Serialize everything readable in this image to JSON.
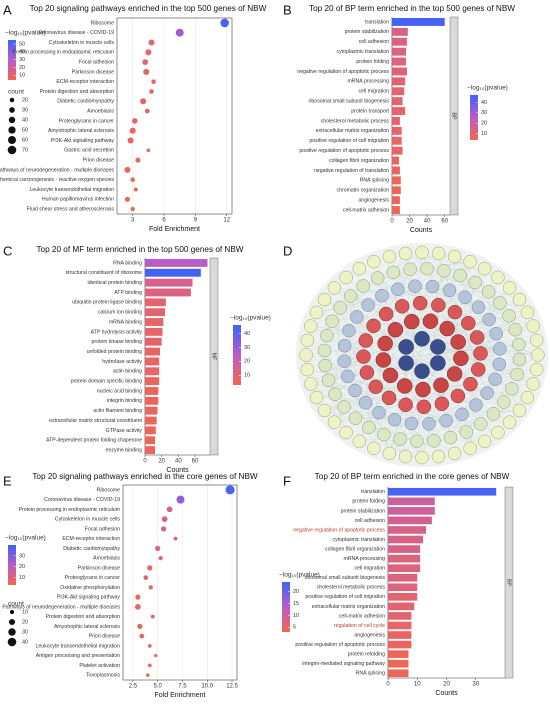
{
  "chart_data": [
    {
      "type": "dot",
      "panel": "A",
      "title": "Top 20 signaling pathways enriched in the top 500 genes of NBW",
      "categories": [
        "Ribosome",
        "Coronavirus disease - COVID-19",
        "Cytoskeleton in muscle cells",
        "Protein processing in endoplasmic reticulum",
        "Focal adhesion",
        "Parkinson disease",
        "ECM-receptor interaction",
        "Protein digestion and absorption",
        "Diabetic cardiomyopathy",
        "Amoebiasis",
        "Proteoglycans in cancer",
        "Amyotrophic lateral sclerosis",
        "PI3K-Akt signaling pathway",
        "Gastric acid secretion",
        "Prion disease",
        "Pathways of neurodegeneration - multiple diseases",
        "Chemical carcinogenesis - reactive oxygen species",
        "Leukocyte transendothelial migration",
        "Human papillomavirus infection",
        "Fluid shear stress and atherosclerosis"
      ],
      "values": [
        11.8,
        7.5,
        4.8,
        4.5,
        4.2,
        4.3,
        5.0,
        4.8,
        4.0,
        4.4,
        3.2,
        3.0,
        2.8,
        4.5,
        3.5,
        2.5,
        3.0,
        3.3,
        2.5,
        3.0
      ],
      "color_values": [
        52,
        35,
        12,
        12,
        11,
        11,
        10,
        10,
        10,
        9,
        8,
        8,
        8,
        7,
        7,
        7,
        7,
        6,
        6,
        6
      ],
      "counts": [
        70,
        60,
        35,
        35,
        30,
        35,
        20,
        20,
        35,
        22,
        30,
        35,
        35,
        12,
        25,
        35,
        20,
        15,
        25,
        18
      ],
      "xlim": [
        1.5,
        12.5
      ],
      "xticks": [
        3,
        6,
        9,
        12
      ],
      "xlabel": "Fold Enrichment",
      "colorbar_title": "−log₁₀(pvalue)",
      "clim": [
        4,
        55
      ],
      "cticks": [
        10,
        20,
        30,
        40,
        50
      ],
      "size_title": "count",
      "size_ticks": [
        20,
        30,
        40,
        50,
        60,
        70
      ],
      "colorscale": [
        "#f3674c",
        "#b95cc9",
        "#3c63f5"
      ],
      "grid": true
    },
    {
      "type": "bar",
      "panel": "B",
      "title": "Top 20 of BP term enriched in the top 500 genes of NBW",
      "categories": [
        "translation",
        "protein stabilization",
        "cell adhesion",
        "cytoplasmic translation",
        "protein folding",
        "negative regulation of apoptotic process",
        "mRNA processing",
        "cell migration",
        "ribosomal small subunit biogenesis",
        "protein transport",
        "cholesterol metabolic process",
        "extracellular matrix organization",
        "positive regulation of cell migration",
        "positive regulation of apoptotic process",
        "collagen fibril organization",
        "negative regulation of translation",
        "RNA splicing",
        "chromatin organization",
        "angiogenesis",
        "cell-matrix adhesion"
      ],
      "values": [
        60,
        18,
        17,
        16,
        16,
        17,
        15,
        14,
        12,
        15,
        9,
        11,
        11,
        12,
        8,
        9,
        10,
        10,
        9,
        9
      ],
      "color_values": [
        45,
        14,
        13,
        13,
        13,
        11,
        11,
        10,
        10,
        9,
        9,
        9,
        8,
        8,
        8,
        7,
        7,
        7,
        7,
        6
      ],
      "xlim": [
        0,
        66
      ],
      "xticks": [
        0,
        20,
        40,
        60
      ],
      "xlabel": "Counts",
      "facet": "BP",
      "colorbar_title": "−log₁₀(pvalue)",
      "clim": [
        4,
        47
      ],
      "cticks": [
        10,
        20,
        30,
        40
      ],
      "colorscale": [
        "#f3674c",
        "#b95cc9",
        "#3c63f5"
      ]
    },
    {
      "type": "bar",
      "panel": "C",
      "title": "Top 20 of MF term enriched in the top 500 genes of NBW",
      "categories": [
        "RNA binding",
        "structural constituent of ribosome",
        "identical protein binding",
        "ATP binding",
        "ubiquitin protein ligase binding",
        "calcium ion binding",
        "mRNA binding",
        "ATP hydrolysis activity",
        "protein kinase binding",
        "unfolded protein binding",
        "hydrolase activity",
        "actin binding",
        "protein domain specific binding",
        "nucleic acid binding",
        "integrin binding",
        "actin filament binding",
        "extracellular matrix structural constituent",
        "GTPase activity",
        "ATP-dependent protein folding chaperone",
        "enzyme binding"
      ],
      "values": [
        75,
        67,
        57,
        55,
        25,
        24,
        22,
        21,
        20,
        18,
        17,
        17,
        17,
        16,
        16,
        15,
        14,
        13,
        12,
        12
      ],
      "color_values": [
        24,
        45,
        14,
        12,
        9,
        9,
        8,
        8,
        8,
        7,
        7,
        7,
        6,
        6,
        6,
        6,
        6,
        5,
        5,
        5
      ],
      "xlim": [
        0,
        78
      ],
      "xticks": [
        0,
        20,
        40,
        60
      ],
      "xlabel": "Counts",
      "facet": "MF",
      "colorbar_title": "−log₁₀(pvalue)",
      "clim": [
        3,
        46
      ],
      "cticks": [
        10,
        20,
        30,
        40
      ],
      "colorscale": [
        "#f3674c",
        "#b95cc9",
        "#3c63f5"
      ]
    },
    {
      "type": "network",
      "panel": "D"
    },
    {
      "type": "dot",
      "panel": "E",
      "title": "Top 20 signaling pathways enriched in the core genes of NBW",
      "categories": [
        "Ribosome",
        "Coronavirus disease - COVID-19",
        "Protein processing in endoplasmic reticulum",
        "Cytoskeleton in muscle cells",
        "Focal adhesion",
        "ECM-receptor interaction",
        "Diabetic cardiomyopathy",
        "Amoebiasis",
        "Parkinson disease",
        "Proteoglycans in cancer",
        "Oxidative phosphorylation",
        "PI3K-Akt signaling pathway",
        "Pathways of neurodegeneration - multiple diseases",
        "Protein digestion and absorption",
        "Amyotrophic lateral sclerosis",
        "Prion disease",
        "Leukocyte transendothelial migration",
        "Antigen processing and presentation",
        "Platelet activation",
        "Toxoplasmosis"
      ],
      "values": [
        12.3,
        7.3,
        6.2,
        5.7,
        5.6,
        6.8,
        5.0,
        5.3,
        4.2,
        3.8,
        4.3,
        3.0,
        3.0,
        4.5,
        3.2,
        3.4,
        4.2,
        4.8,
        4.2,
        4.0
      ],
      "color_values": [
        38,
        27,
        12,
        11,
        10,
        9,
        9,
        9,
        8,
        8,
        8,
        7,
        7,
        7,
        6,
        6,
        6,
        5,
        5,
        5
      ],
      "counts": [
        45,
        35,
        18,
        18,
        15,
        8,
        15,
        10,
        15,
        12,
        10,
        15,
        18,
        8,
        15,
        12,
        8,
        6,
        8,
        7
      ],
      "xlim": [
        1.5,
        13
      ],
      "xticks": [
        2.5,
        {
          "value": 5,
          "label": "5.0"
        },
        7.5,
        {
          "value": 10,
          "label": "10.0"
        },
        12.5
      ],
      "xlabel": "Fold Enrichment",
      "colorbar_title": "−log₁₀(pvalue)",
      "clim": [
        3,
        40
      ],
      "cticks": [
        10,
        20,
        30
      ],
      "size_title": "count",
      "size_ticks": [
        10,
        20,
        30,
        40
      ],
      "colorscale": [
        "#f3674c",
        "#b95cc9",
        "#3c63f5"
      ],
      "grid": true
    },
    {
      "type": "bar",
      "panel": "F",
      "title": "Top 20 of BP term enriched in the core genes of NBW",
      "categories": [
        "translation",
        "protein folding",
        "protein stabilization",
        "cell adhesion",
        "negative regulation of apoptotic process",
        "cytoplasmic translation",
        "collagen fibril organization",
        "mRNA processing",
        "cell migration",
        "ribosomal small subunit biogenesis",
        "cholesterol metabolic process",
        "positive regulation of cell migration",
        "extracellular matrix organization",
        "cell-matrix adhesion",
        "regulation of cell cycle",
        "angiogenesis",
        "positive regulation of apoptotic process",
        "protein refolding",
        "integrin-mediated signaling pathway",
        "RNA splicing"
      ],
      "values": [
        37,
        16,
        16,
        15,
        13,
        12,
        11,
        11,
        11,
        10,
        10,
        10,
        9,
        8,
        8,
        8,
        8,
        7,
        7,
        7
      ],
      "color_values": [
        23,
        10,
        10,
        9,
        8,
        8,
        8,
        7,
        7,
        7,
        7,
        6,
        6,
        6,
        5,
        5,
        5,
        4,
        4,
        4
      ],
      "xlim": [
        0,
        40
      ],
      "xticks": [
        0,
        10,
        20,
        30
      ],
      "xlabel": "Counts",
      "facet": "BP",
      "colorbar_title": "−log₁₀(pvalue)",
      "clim": [
        3,
        24
      ],
      "cticks": [
        5,
        10,
        15,
        20
      ],
      "colorscale": [
        "#f3674c",
        "#b95cc9",
        "#3c63f5"
      ],
      "highlight": [
        4,
        14
      ],
      "highlight_color": "#c0392b"
    }
  ]
}
